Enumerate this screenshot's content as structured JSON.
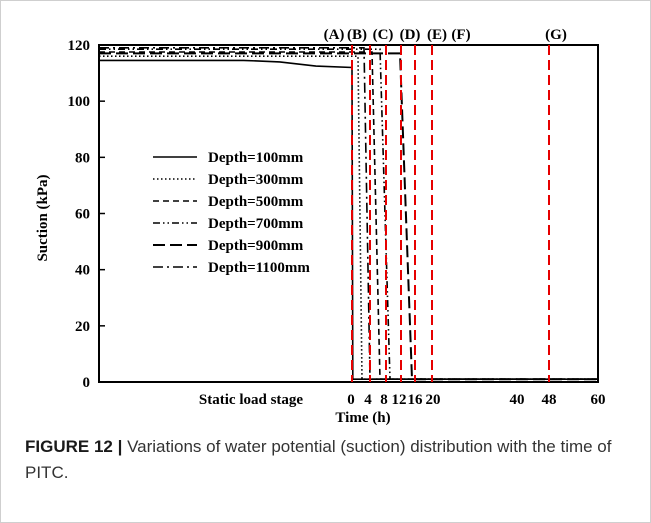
{
  "caption": {
    "label": "FIGURE 12 |",
    "text": " Variations of water potential (suction) distribution with the time of PITC."
  },
  "chart_data": {
    "type": "line",
    "title": "",
    "ylabel": "Suction (kPa)",
    "xlabel": "Time (h)",
    "ylim": [
      0,
      120
    ],
    "xlim": [
      0,
      60
    ],
    "grid": false,
    "legend_position": "middle-left",
    "y_ticks": [
      0,
      20,
      40,
      60,
      80,
      100,
      120
    ],
    "x_tick_labels": [
      "0",
      "4",
      "8",
      "12",
      "16",
      "20",
      "40",
      "48",
      "60"
    ],
    "x_ticks": [
      0,
      4,
      8,
      12,
      16,
      20,
      40,
      48,
      60
    ],
    "stage_label": "Static load stage",
    "stage_markers": [
      {
        "label": "(A)",
        "x": 0
      },
      {
        "label": "(B)",
        "x": 4
      },
      {
        "label": "(C)",
        "x": 8
      },
      {
        "label": "(D)",
        "x": 12
      },
      {
        "label": "(E)",
        "x": 16
      },
      {
        "label": "(F)",
        "x": 20
      },
      {
        "label": "(G)",
        "x": 48
      }
    ],
    "marker_color": "#e60000",
    "series": [
      {
        "name": "Depth=100mm",
        "style": "solid",
        "static_values": [
          114.5,
          114.5,
          114.5,
          114.5,
          114.5,
          114,
          112.5,
          112
        ],
        "x": [
          0,
          0.2,
          20,
          60
        ],
        "y": [
          112,
          1,
          1,
          1
        ]
      },
      {
        "name": "Depth=300mm",
        "style": "dotted",
        "static_values": [
          116,
          116,
          116,
          116,
          116,
          116,
          116,
          116
        ],
        "x": [
          0,
          1.5,
          2.5,
          20,
          60
        ],
        "y": [
          116,
          116,
          1,
          1,
          1
        ]
      },
      {
        "name": "Depth=500mm",
        "style": "dashed",
        "static_values": [
          117.5,
          117.5,
          117.5,
          117.5,
          117.5,
          117.5,
          117.5,
          117.5
        ],
        "x": [
          0,
          5,
          7,
          20,
          60
        ],
        "y": [
          117.5,
          117.5,
          1,
          1,
          1
        ]
      },
      {
        "name": "Depth=700mm",
        "style": "dashdotdot",
        "static_values": [
          118.5,
          118.5,
          118.5,
          118.5,
          118.5,
          118.5,
          118.5,
          118.5
        ],
        "x": [
          0,
          7,
          9.5,
          20,
          60
        ],
        "y": [
          118.5,
          118.5,
          1,
          1,
          1
        ]
      },
      {
        "name": "Depth=900mm",
        "style": "longdash",
        "static_values": [
          117,
          117,
          117,
          117,
          117,
          117,
          117,
          117
        ],
        "x": [
          0,
          12,
          15,
          20,
          60
        ],
        "y": [
          117,
          117,
          1,
          1,
          1
        ]
      },
      {
        "name": "Depth=1100mm",
        "style": "dashdot",
        "static_values": [
          119,
          119,
          119,
          119,
          119,
          119,
          119,
          119
        ],
        "x": [
          0,
          3,
          4.5,
          20,
          60
        ],
        "y": [
          119,
          119,
          1,
          1,
          1
        ]
      }
    ]
  }
}
